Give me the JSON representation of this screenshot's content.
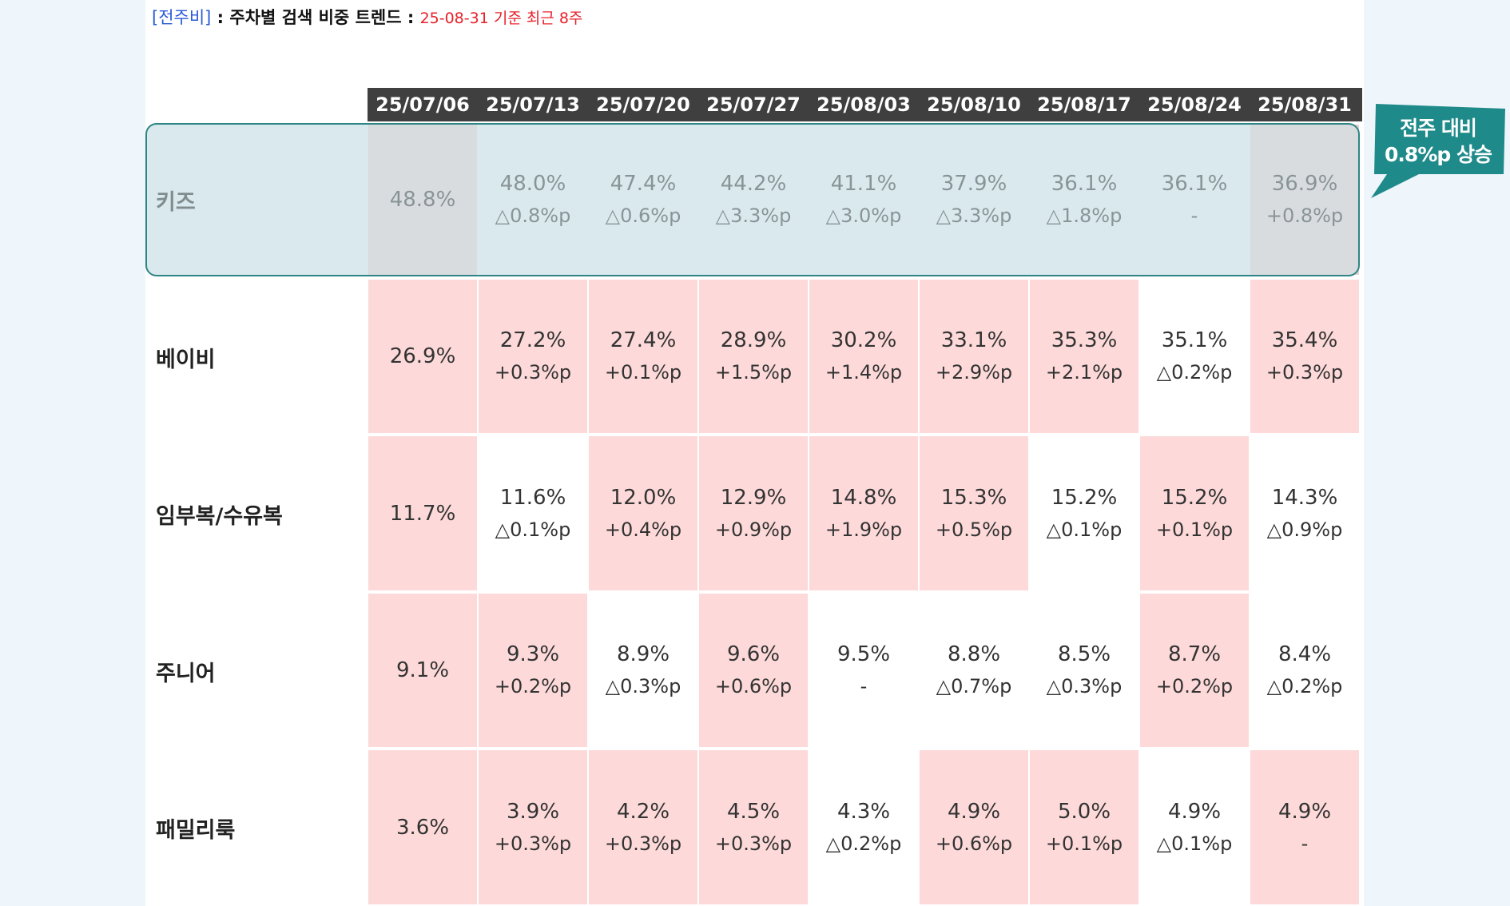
{
  "title": {
    "bracket": "[전주비]",
    "sep": " : ",
    "main": "주차별 검색 비중 트렌드",
    "sep2": " : ",
    "sub": "25-08-31 기준 최근 8주"
  },
  "callout": {
    "line1": "전주 대비",
    "line2": "0.8%p 상승"
  },
  "colors": {
    "highlight_fill": "#fdd9d9",
    "header_bg": "#3f3f3f",
    "kids_band": "#e4eff2",
    "kids_hl": "#e3d3d3",
    "callout": "#1f8a8a"
  },
  "chart_data": {
    "type": "table",
    "columns": [
      "25/07/06",
      "25/07/13",
      "25/07/20",
      "25/07/27",
      "25/08/03",
      "25/08/10",
      "25/08/17",
      "25/08/24",
      "25/08/31"
    ],
    "rows": [
      {
        "label": "키즈",
        "values": [
          "48.8%",
          "48.0%",
          "47.4%",
          "44.2%",
          "41.1%",
          "37.9%",
          "36.1%",
          "36.1%",
          "36.9%"
        ],
        "deltas": [
          "",
          "△0.8%p",
          "△0.6%p",
          "△3.3%p",
          "△3.0%p",
          "△3.3%p",
          "△1.8%p",
          "-",
          "+0.8%p"
        ],
        "highlight": [
          true,
          false,
          false,
          false,
          false,
          false,
          false,
          false,
          true
        ]
      },
      {
        "label": "베이비",
        "values": [
          "26.9%",
          "27.2%",
          "27.4%",
          "28.9%",
          "30.2%",
          "33.1%",
          "35.3%",
          "35.1%",
          "35.4%"
        ],
        "deltas": [
          "",
          "+0.3%p",
          "+0.1%p",
          "+1.5%p",
          "+1.4%p",
          "+2.9%p",
          "+2.1%p",
          "△0.2%p",
          "+0.3%p"
        ],
        "highlight": [
          true,
          true,
          true,
          true,
          true,
          true,
          true,
          false,
          true
        ]
      },
      {
        "label": "임부복/수유복",
        "values": [
          "11.7%",
          "11.6%",
          "12.0%",
          "12.9%",
          "14.8%",
          "15.3%",
          "15.2%",
          "15.2%",
          "14.3%"
        ],
        "deltas": [
          "",
          "△0.1%p",
          "+0.4%p",
          "+0.9%p",
          "+1.9%p",
          "+0.5%p",
          "△0.1%p",
          "+0.1%p",
          "△0.9%p"
        ],
        "highlight": [
          true,
          false,
          true,
          true,
          true,
          true,
          false,
          true,
          false
        ]
      },
      {
        "label": "주니어",
        "values": [
          "9.1%",
          "9.3%",
          "8.9%",
          "9.6%",
          "9.5%",
          "8.8%",
          "8.5%",
          "8.7%",
          "8.4%"
        ],
        "deltas": [
          "",
          "+0.2%p",
          "△0.3%p",
          "+0.6%p",
          "-",
          "△0.7%p",
          "△0.3%p",
          "+0.2%p",
          "△0.2%p"
        ],
        "highlight": [
          true,
          true,
          false,
          true,
          false,
          false,
          false,
          true,
          false
        ]
      },
      {
        "label": "패밀리룩",
        "values": [
          "3.6%",
          "3.9%",
          "4.2%",
          "4.5%",
          "4.3%",
          "4.9%",
          "5.0%",
          "4.9%",
          "4.9%"
        ],
        "deltas": [
          "",
          "+0.3%p",
          "+0.3%p",
          "+0.3%p",
          "△0.2%p",
          "+0.6%p",
          "+0.1%p",
          "△0.1%p",
          "-"
        ],
        "highlight": [
          true,
          true,
          true,
          true,
          false,
          true,
          true,
          false,
          true
        ]
      }
    ]
  }
}
